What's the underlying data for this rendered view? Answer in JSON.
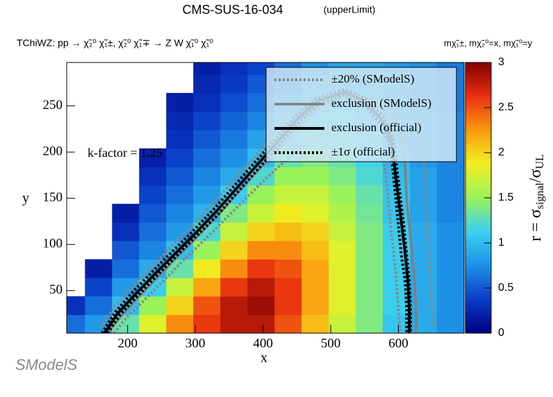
{
  "chart_data": {
    "type": "heatmap",
    "title": "CMS-SUS-16-034",
    "title_note": "(upperLimit)",
    "subtitle": "TChiWZ: pp → χ̃₂⁰ χ̃₁±, χ̃₂⁰ χ̃₁∓ → Z W χ̃₁⁰ χ̃₁⁰",
    "mass_note": "mχ̃₁±, mχ̃₂⁰=x, mχ̃₁⁰=y",
    "xlabel": "x",
    "ylabel": "y",
    "zlabel_parts": [
      "r = σ",
      "signal",
      "/σ",
      "UL"
    ],
    "annotation": "k-factor = 1.25",
    "logo": "SModelS",
    "xlim": [
      110,
      697
    ],
    "ylim": [
      4,
      297
    ],
    "zlim": [
      0,
      3
    ],
    "xticks": [
      200,
      300,
      400,
      500,
      600
    ],
    "yticks": [
      50,
      100,
      150,
      200,
      250
    ],
    "zticks": [
      0,
      0.5,
      1,
      1.5,
      2,
      2.5,
      3
    ],
    "colormap": [
      "#000080",
      "#0a3cc8",
      "#1e90e6",
      "#3cd2f0",
      "#9af25a",
      "#f0f020",
      "#fa9a10",
      "#e83010",
      "#800000"
    ],
    "x_bins": [
      110,
      137,
      177,
      217,
      257,
      297,
      337,
      377,
      417,
      457,
      497,
      537,
      577,
      617,
      657,
      697
    ],
    "y_bins": [
      4,
      24,
      44,
      64,
      84,
      104,
      124,
      144,
      164,
      184,
      204,
      224,
      244,
      264,
      284,
      297
    ],
    "z": [
      [
        0.6,
        0.3,
        null,
        null,
        null,
        null,
        null,
        null,
        null,
        null,
        null,
        null,
        null,
        null,
        null
      ],
      [
        0.8,
        0.6,
        0.4,
        0.2,
        null,
        null,
        null,
        null,
        null,
        null,
        null,
        null,
        null,
        null,
        null
      ],
      [
        1.3,
        1.0,
        0.8,
        0.6,
        0.5,
        0.3,
        0.2,
        null,
        null,
        null,
        null,
        null,
        null,
        null,
        null
      ],
      [
        1.8,
        1.5,
        1.1,
        0.9,
        0.7,
        0.6,
        0.5,
        0.4,
        0.3,
        0.2,
        null,
        null,
        null,
        null,
        null
      ],
      [
        2.3,
        2.0,
        1.7,
        1.3,
        1.0,
        0.8,
        0.7,
        0.6,
        0.5,
        0.4,
        0.3,
        0.25,
        0.2,
        null,
        null
      ],
      [
        2.6,
        2.5,
        2.2,
        1.9,
        1.5,
        1.2,
        0.95,
        0.8,
        0.7,
        0.6,
        0.5,
        0.4,
        0.3,
        0.25,
        0.2
      ],
      [
        2.8,
        2.8,
        2.6,
        2.3,
        2.0,
        1.7,
        1.4,
        1.1,
        0.9,
        0.75,
        0.65,
        0.55,
        0.45,
        0.35,
        0.3
      ],
      [
        2.8,
        2.9,
        2.8,
        2.6,
        2.3,
        2.0,
        1.7,
        1.5,
        1.2,
        1.0,
        0.85,
        0.7,
        0.6,
        0.5,
        0.4
      ],
      [
        2.5,
        2.6,
        2.6,
        2.5,
        2.3,
        2.1,
        1.9,
        1.7,
        1.5,
        1.3,
        1.1,
        0.95,
        0.8,
        0.65,
        0.6
      ],
      [
        2.1,
        2.2,
        2.2,
        2.2,
        2.1,
        2.0,
        1.8,
        1.7,
        1.5,
        1.4,
        1.25,
        1.1,
        0.95,
        0.85,
        0.75
      ],
      [
        1.7,
        1.8,
        1.8,
        1.8,
        1.8,
        1.7,
        1.6,
        1.5,
        1.4,
        1.3,
        1.2,
        1.1,
        1.0,
        0.9,
        0.85
      ],
      [
        1.4,
        1.4,
        1.4,
        1.4,
        1.4,
        1.4,
        1.35,
        1.3,
        1.2,
        1.15,
        1.1,
        1.0,
        0.95,
        0.9,
        0.85
      ],
      [
        1.05,
        1.1,
        1.1,
        1.1,
        1.1,
        1.1,
        1.05,
        1.05,
        1.0,
        0.95,
        0.9,
        0.9,
        0.85,
        0.85,
        0.8
      ],
      [
        0.9,
        0.9,
        0.9,
        0.9,
        0.9,
        0.9,
        0.85,
        0.85,
        0.85,
        0.8,
        0.8,
        0.8,
        0.75,
        0.75,
        0.75
      ],
      [
        0.75,
        0.75,
        0.75,
        0.75,
        0.75,
        0.75,
        0.7,
        0.7,
        0.7,
        0.7,
        0.7,
        0.7,
        0.65,
        0.65,
        0.65
      ]
    ],
    "contours": [
      {
        "name": "±20% (SModelS)",
        "color": "#888888",
        "style": "dotted",
        "curves": [
          {
            "x": [
              180,
              200,
              225,
              255,
              285,
              315,
              345,
              375,
              405,
              435,
              465,
              500,
              540,
              565,
              580,
              585,
              590,
              596,
              600,
              602
            ],
            "y": [
              4,
              22,
              40,
              62,
              85,
              106,
              128,
              150,
              172,
              192,
              210,
              225,
              225,
              210,
              185,
              150,
              110,
              70,
              30,
              4
            ]
          },
          {
            "x": [
              160,
              180,
              205,
              235,
              265,
              295,
              325,
              355,
              385,
              415,
              445,
              480,
              520,
              565,
              600,
              625,
              635,
              640,
              642,
              645,
              648,
              652
            ],
            "y": [
              10,
              32,
              52,
              75,
              98,
              120,
              143,
              168,
              192,
              218,
              245,
              270,
              285,
              285,
              275,
              250,
              210,
              170,
              130,
              90,
              50,
              10
            ]
          }
        ]
      },
      {
        "name": "exclusion (SModelS)",
        "color": "#808080",
        "style": "solid",
        "curves": [
          {
            "x": [
              170,
              190,
              215,
              245,
              275,
              305,
              335,
              365,
              395,
              425,
              455,
              485,
              525,
              560,
              590,
              605,
              610,
              612,
              616,
              620,
              624,
              626,
              626
            ],
            "y": [
              4,
              22,
              42,
              65,
              88,
              110,
              133,
              158,
              182,
              205,
              228,
              250,
              262,
              258,
              240,
              215,
              185,
              150,
              120,
              90,
              60,
              30,
              4
            ]
          }
        ]
      },
      {
        "name": "exclusion (official)",
        "color": "#000000",
        "style": "solid",
        "curves": [
          {
            "x": [
              166,
              185,
              210,
              240,
              270,
              300,
              330,
              360,
              390,
              420,
              450,
              480,
              520,
              550,
              575,
              590,
              595,
              600,
              605,
              610,
              614,
              616,
              616
            ],
            "y": [
              4,
              25,
              45,
              68,
              90,
              112,
              135,
              160,
              185,
              210,
              235,
              255,
              265,
              255,
              235,
              210,
              180,
              150,
              120,
              90,
              60,
              30,
              4
            ]
          }
        ]
      },
      {
        "name": "±1σ (official)",
        "color": "#000000",
        "style": "dotted",
        "curves": [
          {
            "x": [
              162,
              182,
              207,
              237,
              267,
              297,
              327,
              357,
              387,
              417,
              447,
              478,
              520,
              552,
              578,
              593,
              598,
              603,
              608,
              612,
              616,
              618,
              618
            ],
            "y": [
              4,
              27,
              48,
              71,
              93,
              115,
              138,
              163,
              188,
              213,
              238,
              258,
              268,
              258,
              238,
              212,
              180,
              150,
              120,
              90,
              60,
              30,
              4
            ]
          },
          {
            "x": [
              170,
              188,
              213,
              243,
              273,
              303,
              333,
              363,
              393,
              423,
              453,
              482,
              520,
              548,
              572,
              587,
              592,
              596,
              600,
              604,
              610,
              612,
              612
            ],
            "y": [
              4,
              23,
              43,
              66,
              88,
              110,
              132,
              157,
              182,
              207,
              232,
              252,
              262,
              252,
              232,
              208,
              180,
              150,
              120,
              90,
              60,
              30,
              4
            ]
          }
        ]
      }
    ]
  }
}
